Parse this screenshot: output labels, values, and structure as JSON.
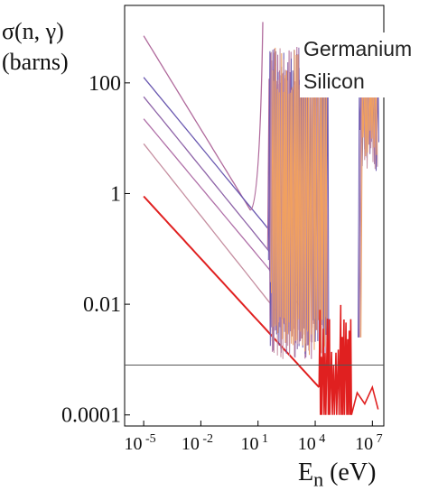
{
  "chart_data": {
    "type": "line",
    "title": "",
    "ylabel": {
      "line1": "σ(n, γ)",
      "line2": "(barns)"
    },
    "xlabel": {
      "symbol": "E",
      "subscript": "n",
      "unit": " (eV)"
    },
    "y_log_scale": true,
    "x_log_scale": true,
    "xlim_exponent": [
      -6,
      7.6
    ],
    "ylim_exponent": [
      -4.2,
      3.4
    ],
    "x_ticks": [
      {
        "base": "10",
        "exp": " -5",
        "value_exp": -5
      },
      {
        "base": "10",
        "exp": " -2",
        "value_exp": -2
      },
      {
        "base": "10",
        "exp": " 1",
        "value_exp": 1
      },
      {
        "base": "10",
        "exp": " 4",
        "value_exp": 4
      },
      {
        "base": "10",
        "exp": " 7",
        "value_exp": 7
      }
    ],
    "y_ticks": [
      {
        "label": "100",
        "value_exp": 2
      },
      {
        "label": "1",
        "value_exp": 0
      },
      {
        "label": "0.01",
        "value_exp": -2
      },
      {
        "label": "0.0001",
        "value_exp": -4
      }
    ],
    "legend": [
      "Germanium",
      "Silicon"
    ],
    "legend_position": "top-right",
    "reference_line": {
      "y_exp": -3.1,
      "color": "#555555"
    },
    "series_colors": {
      "germanium": [
        "#b06a9c",
        "#6a58b0",
        "#8e64a8",
        "#c58ea0",
        "#f0a060"
      ],
      "silicon": [
        "#e02020",
        "#f05a30"
      ]
    },
    "series": [
      {
        "color": "#b06a9c",
        "thermal": {
          "x_exp": -5,
          "y_exp": 2.85
        },
        "min": {
          "x_exp": 0.6,
          "y_exp": -0.3
        },
        "resonance_band": [
          -0.4,
          2.6
        ]
      },
      {
        "color": "#6a58b0",
        "thermal": {
          "x_exp": -5,
          "y_exp": 2.1
        },
        "tail": {
          "x_exp": 3.6,
          "y_exp": -1.5
        },
        "resonance_band": [
          -1.2,
          2.0
        ]
      },
      {
        "color": "#8e64a8",
        "thermal": {
          "x_exp": -5,
          "y_exp": 1.75
        },
        "tail": {
          "x_exp": 3.6,
          "y_exp": -1.9
        }
      },
      {
        "color": "#b070a8",
        "thermal": {
          "x_exp": -5,
          "y_exp": 1.35
        },
        "tail": {
          "x_exp": 3.6,
          "y_exp": -2.2
        }
      },
      {
        "color": "#c58ea0",
        "thermal": {
          "x_exp": -5,
          "y_exp": 0.9
        },
        "tail": {
          "x_exp": 2.6,
          "y_exp": -2.4
        }
      },
      {
        "color": "#e02020",
        "thermal": {
          "x_exp": -5,
          "y_exp": -0.05
        },
        "tail": {
          "x_exp": 4.2,
          "y_exp": -3.5
        },
        "resonance_band": [
          -4.0,
          -2.0
        ]
      }
    ]
  }
}
